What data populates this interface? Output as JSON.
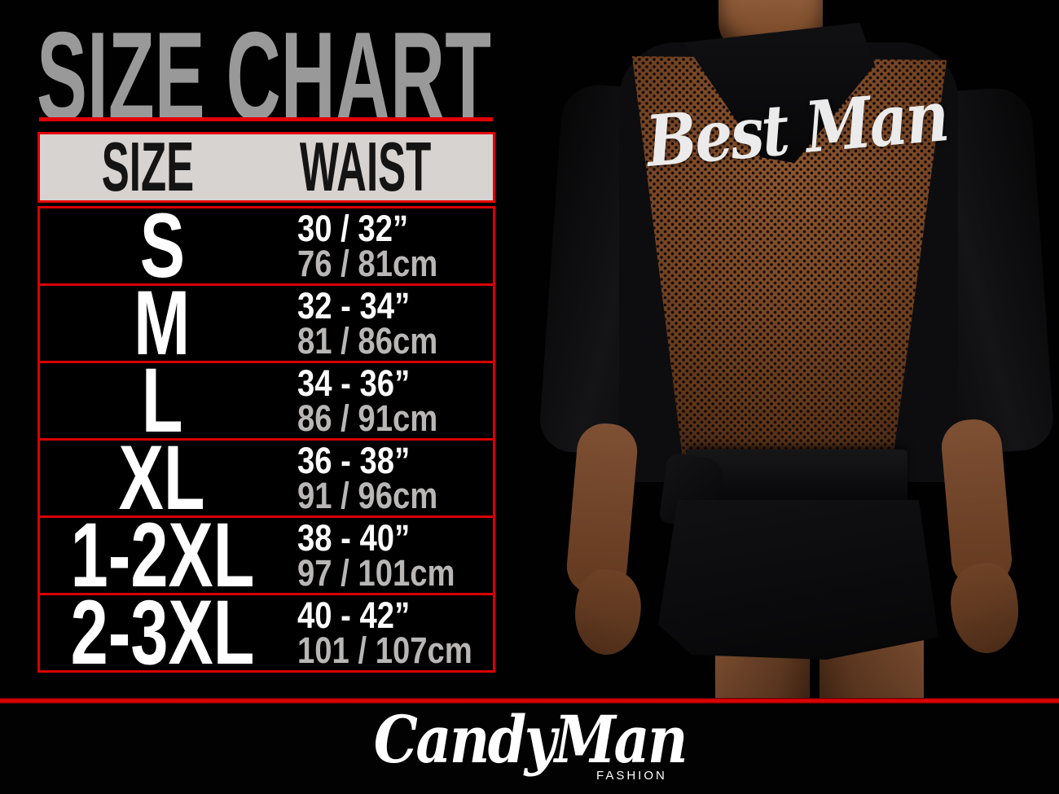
{
  "title": {
    "text": "SIZE CHART",
    "color": "#9a999a",
    "underline_color": "#e30000"
  },
  "table": {
    "accent_red": "#e30000",
    "header_bg": "#d6d3d1",
    "header": {
      "size": "SIZE",
      "waist": "WAIST"
    },
    "rows": [
      {
        "size": "S",
        "inches": "30 / 32”",
        "cm": "76 / 81cm"
      },
      {
        "size": "M",
        "inches": "32 - 34”",
        "cm": "81 / 86cm"
      },
      {
        "size": "L",
        "inches": "34 - 36”",
        "cm": "86 / 91cm"
      },
      {
        "size": "XL",
        "inches": "36 - 38”",
        "cm": "91 / 96cm"
      },
      {
        "size": "1-2XL",
        "inches": "38 - 40”",
        "cm": "97 / 101cm"
      },
      {
        "size": "2-3XL",
        "inches": "40 - 42”",
        "cm": "101 / 107cm"
      }
    ]
  },
  "photo": {
    "garment_back_text": "Best Man"
  },
  "footer": {
    "brand": "CandyMan",
    "brand_sub": "FASHION"
  },
  "chart_data": {
    "type": "table",
    "title": "SIZE CHART",
    "columns": [
      "SIZE",
      "WAIST (inches)",
      "WAIST (cm)"
    ],
    "rows": [
      [
        "S",
        "30 / 32 in",
        "76 / 81 cm"
      ],
      [
        "M",
        "32 - 34 in",
        "81 / 86 cm"
      ],
      [
        "L",
        "34 - 36 in",
        "86 / 91 cm"
      ],
      [
        "XL",
        "36 - 38 in",
        "91 / 96 cm"
      ],
      [
        "1-2XL",
        "38 - 40 in",
        "97 / 101 cm"
      ],
      [
        "2-3XL",
        "40 - 42 in",
        "101 / 107 cm"
      ]
    ]
  }
}
